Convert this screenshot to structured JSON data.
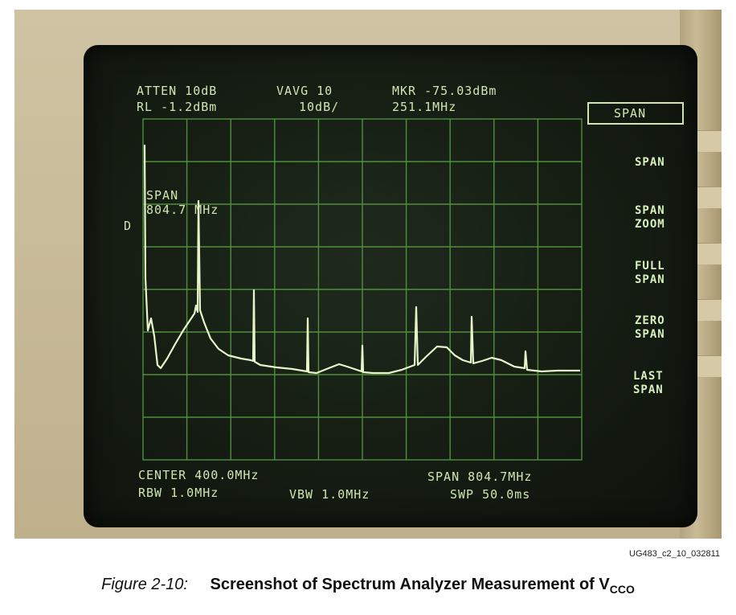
{
  "analyzer": {
    "header_line1": {
      "atten": "ATTEN 10dB",
      "vavg": "VAVG 10",
      "mkr": "MKR -75.03dBm"
    },
    "header_line2": {
      "rl": "RL -1.2dBm",
      "scale": "10dB/",
      "freq": "251.1MHz"
    },
    "mode_box": "SPAN",
    "softkeys": [
      {
        "line1": "SPAN",
        "line2": ""
      },
      {
        "line1": "SPAN",
        "line2": "ZOOM"
      },
      {
        "line1": "FULL",
        "line2": "SPAN"
      },
      {
        "line1": "ZERO",
        "line2": "SPAN"
      },
      {
        "line1": "LAST",
        "line2": "SPAN"
      }
    ],
    "annotation": {
      "line1": "SPAN",
      "line2": "804.7 MHz"
    },
    "marker_symbol": "D",
    "footer_line1": {
      "center": "CENTER 400.0MHz",
      "span": "SPAN 804.7MHz"
    },
    "footer_line2": {
      "rbw": "RBW 1.0MHz",
      "vbw": "VBW 1.0MHz",
      "swp": "SWP 50.0ms"
    }
  },
  "figure": {
    "id_label": "UG483_c2_10_032811",
    "number": "Figure 2-10:",
    "title": "Screenshot of Spectrum Analyzer Measurement of V",
    "title_sub": "CCO"
  },
  "colors": {
    "phosphor": "#e7f4c8",
    "grid": "#4f8f3c",
    "screen": "#141b12"
  }
}
